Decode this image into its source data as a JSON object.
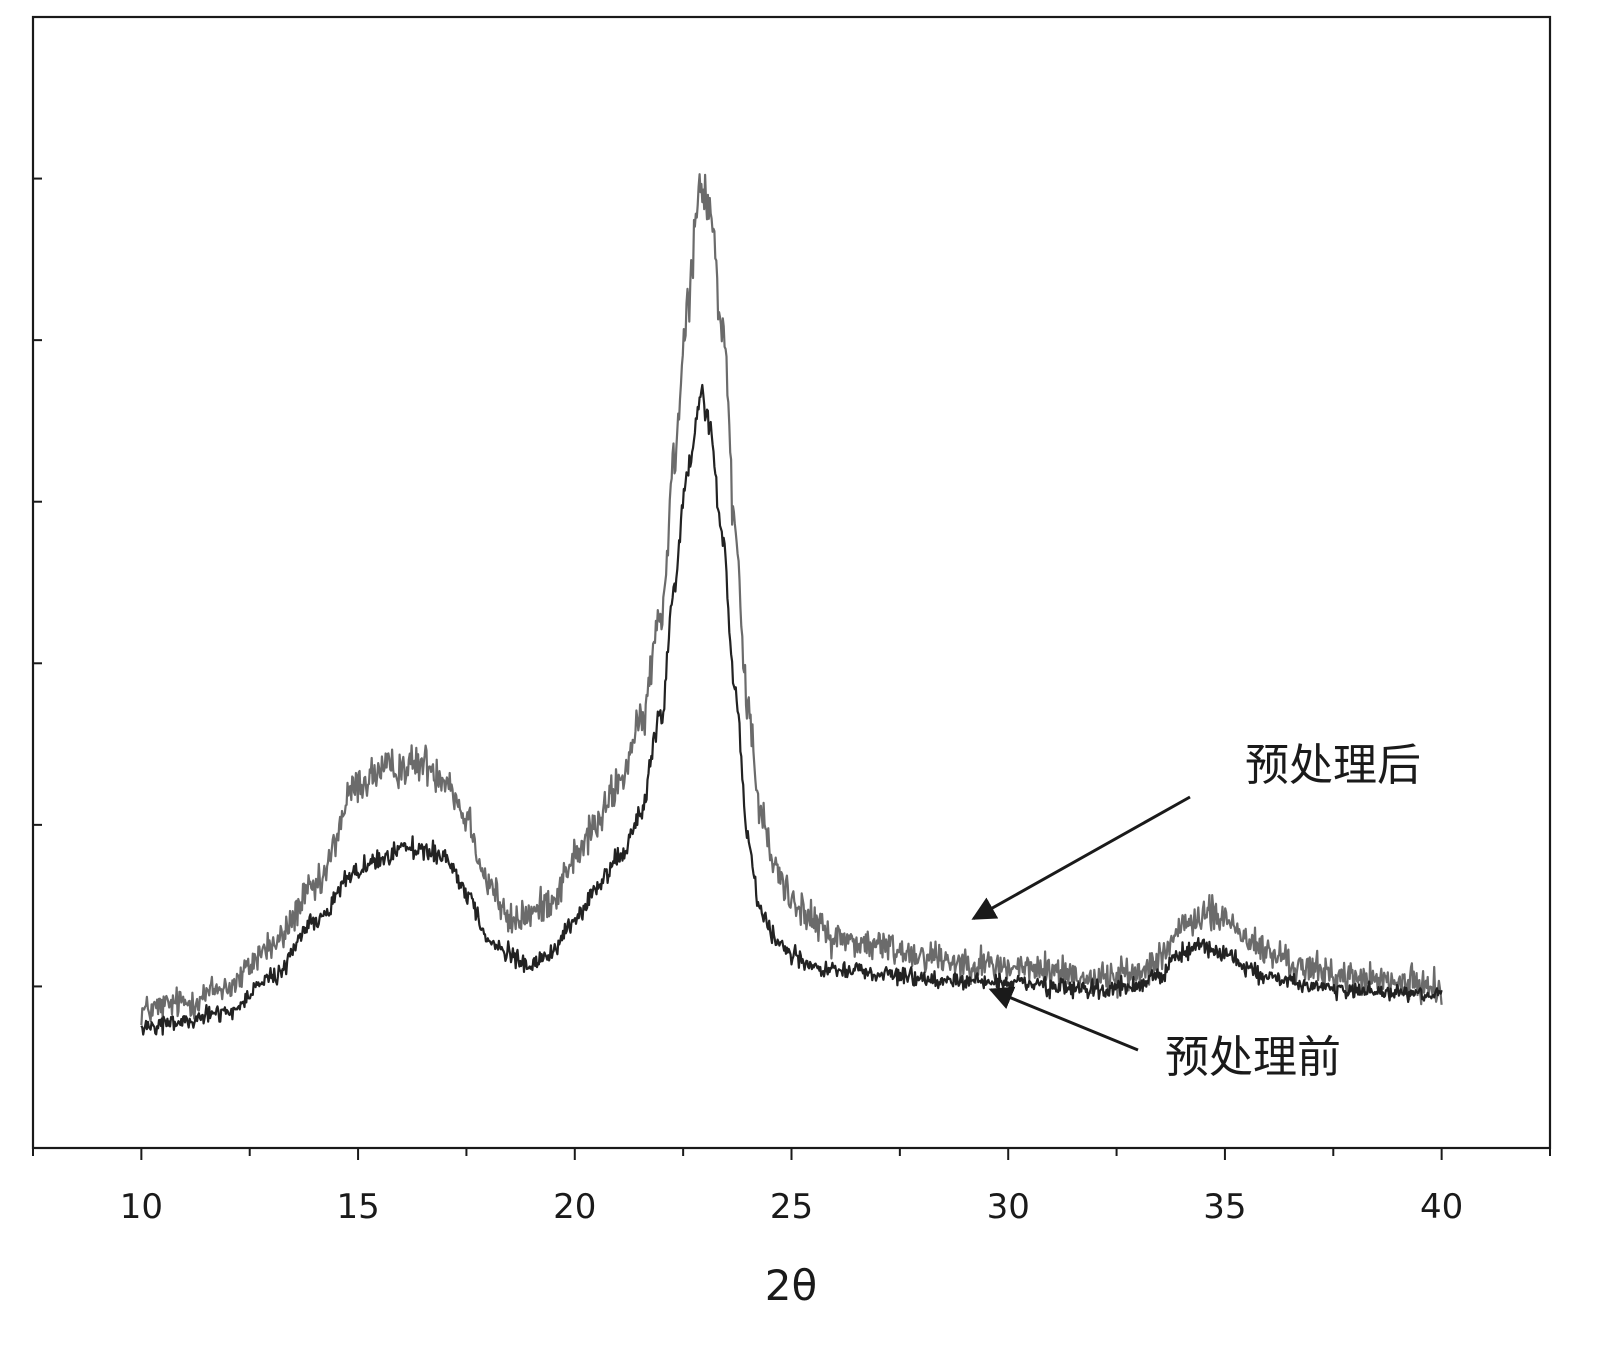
{
  "chart_data": {
    "type": "line",
    "title": "",
    "xlabel": "2θ",
    "ylabel": "",
    "xlim": [
      7.5,
      42.5
    ],
    "ylim": [
      0,
      7
    ],
    "x_ticks": [
      10,
      15,
      20,
      25,
      30,
      35,
      40
    ],
    "x_tick_labels": [
      "10",
      "15",
      "20",
      "25",
      "30",
      "35",
      "40"
    ],
    "y_ticks": [
      1,
      2,
      3,
      4,
      5,
      6
    ],
    "y_tick_labels": [
      "",
      "",
      "",
      "",
      "",
      ""
    ],
    "grid": false,
    "series": [
      {
        "name": "预处理后",
        "color": "#6b6b6b",
        "noise": 0.1,
        "x": [
          10,
          11,
          12,
          13,
          14,
          15,
          15.5,
          16,
          16.5,
          17,
          17.5,
          18,
          18.5,
          19,
          19.5,
          20,
          20.5,
          21,
          21.5,
          22,
          22.3,
          22.6,
          22.9,
          23.1,
          23.4,
          23.7,
          24,
          24.3,
          24.6,
          25,
          25.5,
          26,
          27,
          28,
          29,
          30,
          31,
          32,
          33,
          33.5,
          34,
          34.5,
          35,
          35.5,
          36,
          37,
          38,
          39,
          40
        ],
        "y": [
          0.85,
          0.9,
          1.0,
          1.25,
          1.6,
          2.25,
          2.33,
          2.36,
          2.38,
          2.3,
          2.05,
          1.65,
          1.4,
          1.45,
          1.55,
          1.8,
          2.0,
          2.25,
          2.6,
          3.3,
          4.3,
          5.25,
          6.0,
          5.85,
          5.1,
          3.8,
          2.7,
          2.05,
          1.75,
          1.55,
          1.4,
          1.3,
          1.25,
          1.2,
          1.15,
          1.12,
          1.1,
          1.05,
          1.08,
          1.2,
          1.35,
          1.45,
          1.42,
          1.3,
          1.2,
          1.1,
          1.05,
          1.02,
          1.0
        ]
      },
      {
        "name": "预处理前",
        "color": "#222222",
        "noise": 0.055,
        "x": [
          10,
          11,
          12,
          13,
          14,
          15,
          15.5,
          16,
          16.5,
          17,
          17.5,
          18,
          18.5,
          19,
          19.5,
          20,
          20.5,
          21,
          21.5,
          22,
          22.3,
          22.6,
          22.9,
          23.1,
          23.4,
          23.7,
          24,
          24.3,
          24.6,
          25,
          25.5,
          26,
          27,
          28,
          29,
          30,
          31,
          32,
          33,
          33.5,
          34,
          34.5,
          35,
          35.5,
          36,
          37,
          38,
          39,
          40
        ],
        "y": [
          0.75,
          0.78,
          0.85,
          1.05,
          1.4,
          1.72,
          1.8,
          1.85,
          1.86,
          1.8,
          1.58,
          1.3,
          1.2,
          1.12,
          1.22,
          1.42,
          1.6,
          1.8,
          2.05,
          2.7,
          3.5,
          4.2,
          4.65,
          4.5,
          3.8,
          2.8,
          1.9,
          1.45,
          1.3,
          1.2,
          1.12,
          1.1,
          1.08,
          1.05,
          1.03,
          1.02,
          1.0,
          0.98,
          1.0,
          1.08,
          1.2,
          1.25,
          1.2,
          1.12,
          1.05,
          1.0,
          0.98,
          0.96,
          0.95
        ]
      }
    ],
    "annotations": [
      {
        "text": "预处理后",
        "series": "预处理后",
        "point_at": [
          29.2,
          1.42
        ]
      },
      {
        "text": "预处理前",
        "series": "预处理前",
        "point_at": [
          29.6,
          0.98
        ]
      }
    ]
  }
}
